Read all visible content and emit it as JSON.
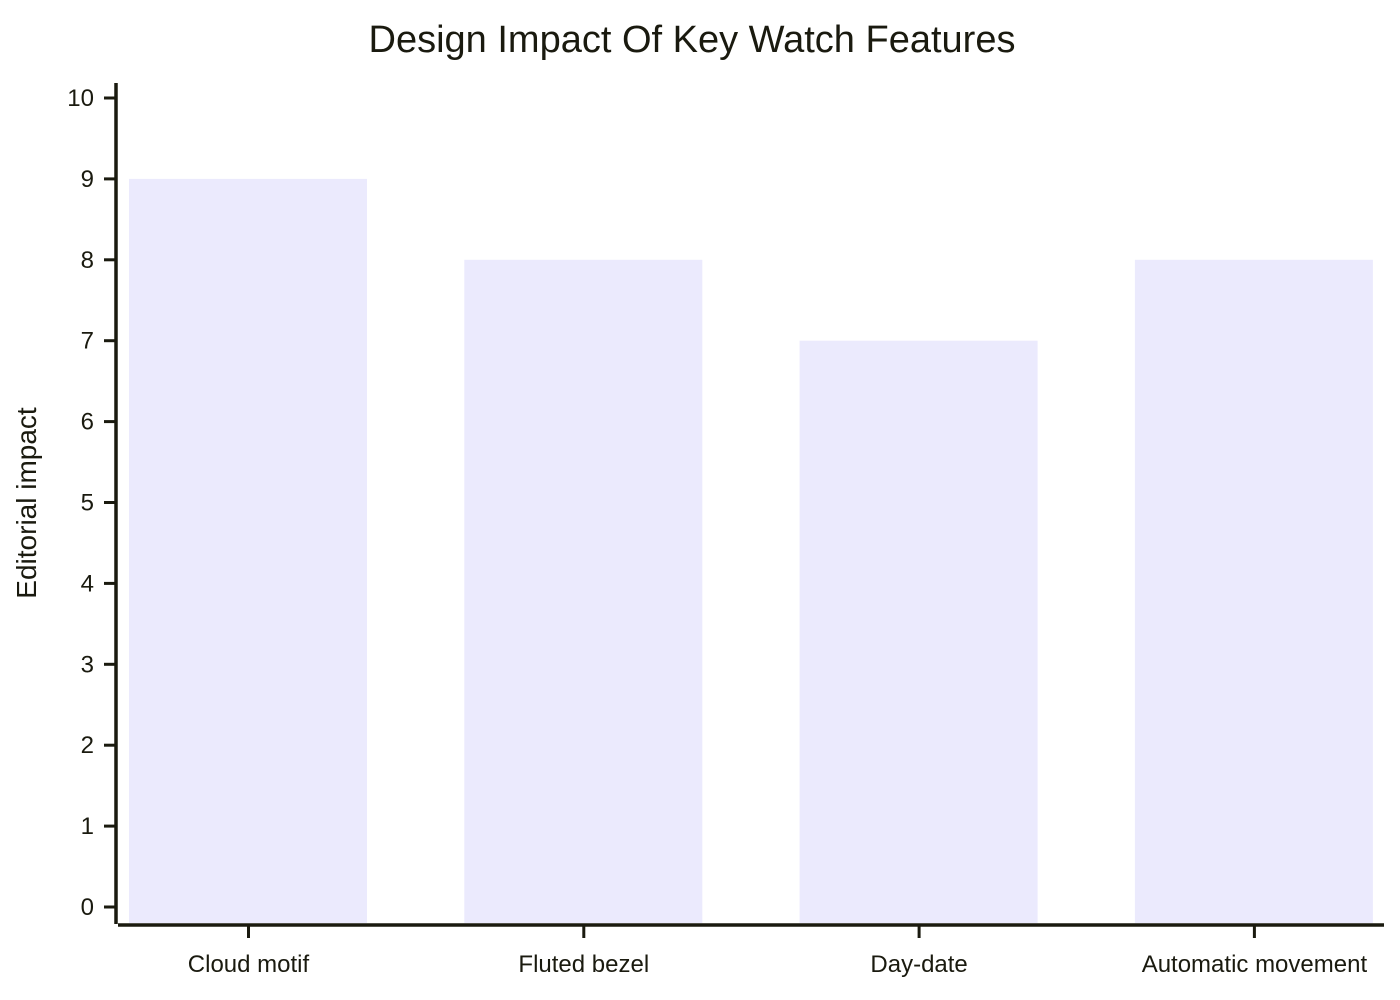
{
  "chart_data": {
    "type": "bar",
    "title": "Design Impact Of Key Watch Features",
    "xlabel": "",
    "ylabel": "Editorial impact",
    "categories": [
      "Cloud motif",
      "Fluted bezel",
      "Day-date",
      "Automatic movement"
    ],
    "values": [
      9,
      8,
      7,
      8
    ],
    "ylim": [
      0,
      10
    ],
    "yticks": [
      "0",
      "1",
      "2",
      "3",
      "4",
      "5",
      "6",
      "7",
      "8",
      "9",
      "10"
    ],
    "grid": false,
    "legend": "none",
    "colors": {
      "bar": "#ebeafd",
      "axis": "#1a1a0f",
      "text": "#1a1a0f"
    }
  }
}
